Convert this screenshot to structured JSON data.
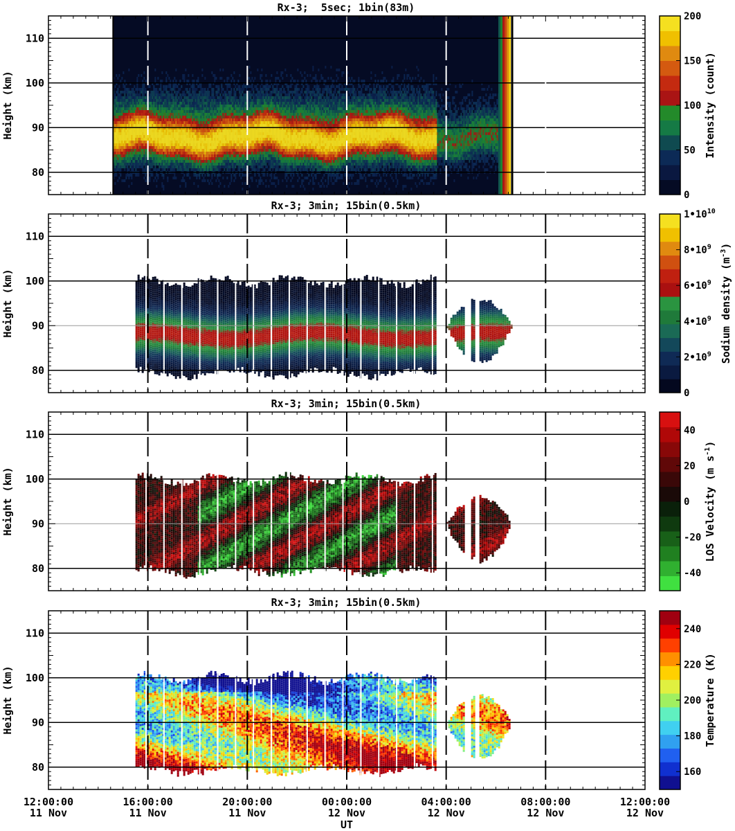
{
  "chart_data": [
    {
      "type": "heatmap",
      "title": "Rx-3;  5sec; 1bin(83m)",
      "ylabel": "Height (km)",
      "ylim": [
        75,
        115
      ],
      "yticks": [
        80,
        90,
        100,
        110
      ],
      "xlim_hours": [
        12,
        36
      ],
      "grid": true,
      "colorbar": {
        "label": "Intensity (count)",
        "range": [
          0,
          200
        ],
        "ticks": [
          "0",
          "50",
          "100",
          "150",
          "200"
        ],
        "colors": [
          "#050b24",
          "#0a1840",
          "#0c2a56",
          "#0f4a50",
          "#157a45",
          "#238a2a",
          "#aa1414",
          "#c42a10",
          "#d45a10",
          "#e08a10",
          "#f0c000",
          "#f5e020"
        ]
      },
      "data_extent_hours": [
        14.6,
        30.6
      ],
      "layer_heights_km": [
        80,
        100
      ],
      "peak_height_km": 88
    },
    {
      "type": "heatmap",
      "title": "Rx-3; 3min; 15bin(0.5km)",
      "ylabel": "Height (km)",
      "ylim": [
        75,
        115
      ],
      "yticks": [
        80,
        90,
        100,
        110
      ],
      "colorbar": {
        "label": "Sodium density (m^-3)",
        "range": [
          0,
          10000000000.0
        ],
        "ticks": [
          "0",
          "2•10^9",
          "4•10^9",
          "6•10^9",
          "8•10^9",
          "1•10^10"
        ],
        "colors": [
          "#04081f",
          "#0a1a40",
          "#0f2a55",
          "#13485a",
          "#1a6a55",
          "#1f7a3a",
          "#2a9440",
          "#aa1010",
          "#c02010",
          "#d05010",
          "#e08a10",
          "#f0c000",
          "#f5e020"
        ]
      },
      "data_extent_hours": [
        [
          15.5,
          27.6
        ],
        [
          28.0,
          30.6
        ]
      ],
      "layer_heights_km": [
        80,
        100
      ]
    },
    {
      "type": "heatmap",
      "title": "Rx-3; 3min; 15bin(0.5km)",
      "ylabel": "Height (km)",
      "ylim": [
        75,
        115
      ],
      "yticks": [
        80,
        90,
        100,
        110
      ],
      "colorbar": {
        "label": "LOS Velocity (m s^-1)",
        "range": [
          -50,
          50
        ],
        "ticks": [
          "-40",
          "-20",
          "0",
          "20",
          "40"
        ],
        "colors": [
          "#40e040",
          "#30b030",
          "#208020",
          "#186018",
          "#0f3a0f",
          "#0a200a",
          "#1a0a08",
          "#3a0808",
          "#600808",
          "#880808",
          "#b00808",
          "#d81010"
        ]
      },
      "data_extent_hours": [
        [
          15.5,
          27.6
        ],
        [
          28.0,
          30.6
        ]
      ],
      "layer_heights_km": [
        80,
        100
      ]
    },
    {
      "type": "heatmap",
      "title": "Rx-3; 3min; 15bin(0.5km)",
      "ylabel": "Height (km)",
      "ylim": [
        75,
        115
      ],
      "yticks": [
        80,
        90,
        100,
        110
      ],
      "xlabel": "UT",
      "colorbar": {
        "label": "Temperature (K)",
        "range": [
          150,
          250
        ],
        "ticks": [
          "160",
          "180",
          "200",
          "220",
          "240"
        ],
        "colors": [
          "#101090",
          "#1030d0",
          "#2060f0",
          "#30a0f0",
          "#40d0f0",
          "#60f0c0",
          "#a0f060",
          "#e0f040",
          "#ffd000",
          "#ff9000",
          "#ff4000",
          "#e00000",
          "#a00010"
        ]
      },
      "data_extent_hours": [
        [
          15.5,
          27.6
        ],
        [
          28.0,
          30.6
        ]
      ],
      "layer_heights_km": [
        80,
        100
      ]
    }
  ],
  "x_axis": {
    "xlabel": "UT",
    "ticks": [
      {
        "time": "12:00:00",
        "date": "11 Nov",
        "hour": 12
      },
      {
        "time": "16:00:00",
        "date": "11 Nov",
        "hour": 16
      },
      {
        "time": "20:00:00",
        "date": "11 Nov",
        "hour": 20
      },
      {
        "time": "00:00:00",
        "date": "12 Nov",
        "hour": 24
      },
      {
        "time": "04:00:00",
        "date": "12 Nov",
        "hour": 28
      },
      {
        "time": "08:00:00",
        "date": "12 Nov",
        "hour": 32
      },
      {
        "time": "12:00:00",
        "date": "12 Nov",
        "hour": 36
      }
    ]
  }
}
